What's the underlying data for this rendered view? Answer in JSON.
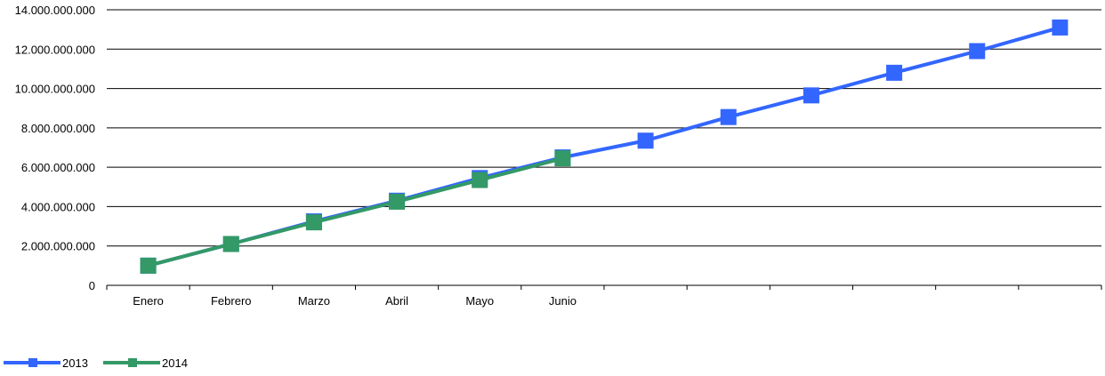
{
  "chart_data": {
    "type": "line",
    "categories": [
      "Enero",
      "Febrero",
      "Marzo",
      "Abril",
      "Mayo",
      "Junio",
      "",
      "",
      "",
      "",
      "",
      ""
    ],
    "y_ticks": [
      0,
      2000000000,
      4000000000,
      6000000000,
      8000000000,
      10000000000,
      12000000000,
      14000000000
    ],
    "y_tick_labels": [
      "0",
      "2.000.000.000",
      "4.000.000.000",
      "6.000.000.000",
      "8.000.000.000",
      "10.000.000.000",
      "12.000.000.000",
      "14.000.000.000"
    ],
    "ylim": [
      0,
      14000000000
    ],
    "grid": true,
    "legend_position": "bottom-left",
    "series": [
      {
        "name": "2013",
        "color": "#3366ff",
        "values": [
          1000000000,
          2100000000,
          3250000000,
          4300000000,
          5450000000,
          6500000000,
          7350000000,
          8550000000,
          9650000000,
          10800000000,
          11900000000,
          13100000000
        ]
      },
      {
        "name": "2014",
        "color": "#339966",
        "values": [
          1000000000,
          2100000000,
          3200000000,
          4250000000,
          5350000000,
          6450000000,
          null,
          null,
          null,
          null,
          null,
          null
        ]
      }
    ]
  }
}
